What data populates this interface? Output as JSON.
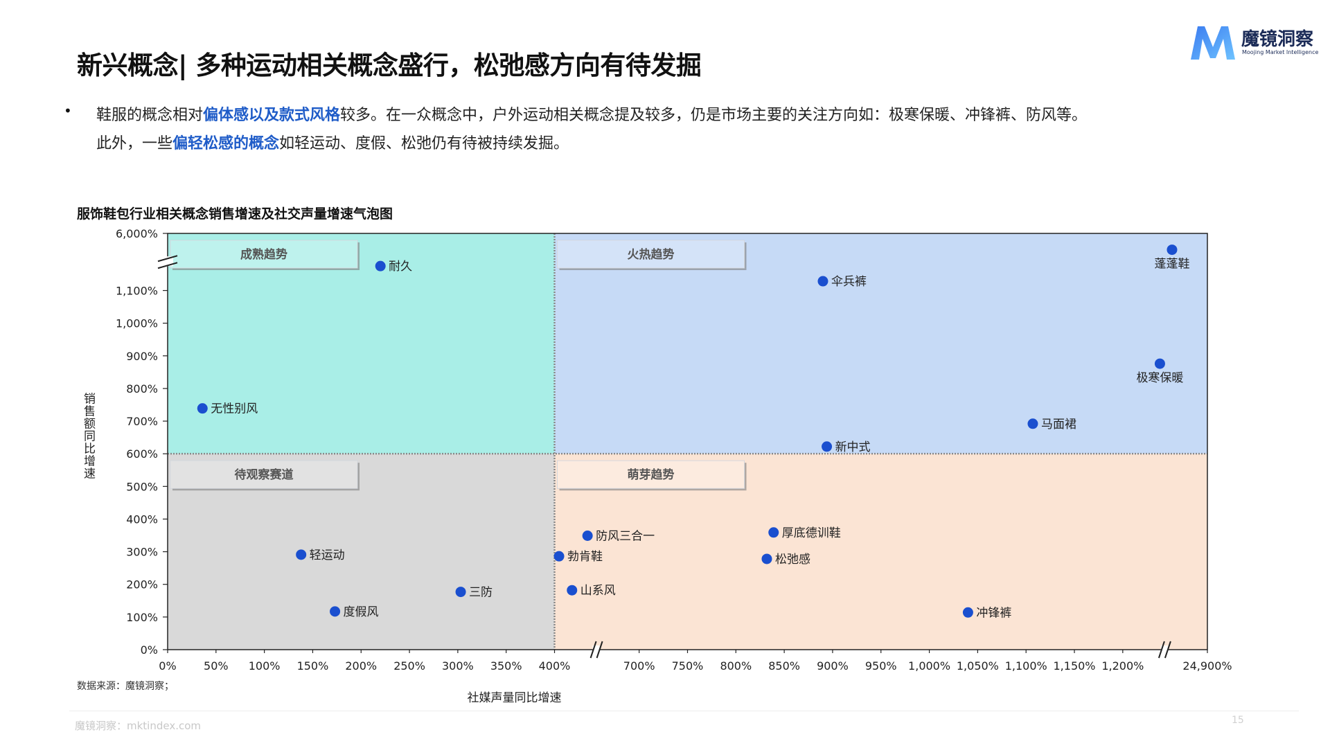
{
  "header": {
    "title": "新兴概念| 多种运动相关概念盛行，松弛感方向有待发掘",
    "logo_name": "魔镜洞察",
    "logo_tagline": "Moojing Market Intelligence"
  },
  "bullet": {
    "lines": [
      [
        {
          "text": "鞋服的概念相对",
          "emphasis": false
        },
        {
          "text": "偏体感以及款式风格",
          "emphasis": true
        },
        {
          "text": "较多。在一众概念中，户外运动相关概念提及较多，仍是市场主要的关注方向如：极寒保暖、冲锋裤、防风等。",
          "emphasis": false
        }
      ],
      [
        {
          "text": "此外，一些",
          "emphasis": false
        },
        {
          "text": "偏轻松感的概念",
          "emphasis": true
        },
        {
          "text": "如轻运动、度假、松弛仍有待被持续发掘。",
          "emphasis": false
        }
      ]
    ]
  },
  "chart_data": {
    "type": "scatter",
    "title": "服饰鞋包行业相关概念销售增速及社交声量增速气泡图",
    "x_label": "社媒声量同比增速",
    "y_label": "销售额同比增速",
    "color": "#1a4fcf",
    "labels": [
      "耐久",
      "蓬蓬鞋",
      "伞兵裤",
      "极寒保暖",
      "马面裙",
      "新中式",
      "无性别风",
      "防风三合一",
      "勃肯鞋",
      "山系风",
      "厚底德训鞋",
      "松弛感",
      "冲锋裤",
      "轻运动",
      "三防",
      "度假风"
    ],
    "x": [
      220,
      15000,
      890,
      11600,
      1107,
      894,
      36,
      517,
      416,
      462,
      839,
      832,
      1040,
      138,
      303,
      173
    ],
    "values": [
      3200,
      4600,
      1900,
      876,
      692,
      622,
      739,
      349,
      286,
      182,
      359,
      278,
      114,
      291,
      177,
      117
    ],
    "xlim": [
      0,
      24900
    ],
    "ylim": [
      0,
      6000
    ],
    "xticks": [
      {
        "value": 0,
        "label": "0%"
      },
      {
        "value": 50,
        "label": "50%"
      },
      {
        "value": 100,
        "label": "100%"
      },
      {
        "value": 150,
        "label": "150%"
      },
      {
        "value": 200,
        "label": "200%"
      },
      {
        "value": 250,
        "label": "250%"
      },
      {
        "value": 300,
        "label": "300%"
      },
      {
        "value": 350,
        "label": "350%"
      },
      {
        "value": 400,
        "label": "400%"
      },
      {
        "value": 700,
        "label": "700%"
      },
      {
        "value": 750,
        "label": "750%"
      },
      {
        "value": 800,
        "label": "800%"
      },
      {
        "value": 850,
        "label": "850%"
      },
      {
        "value": 900,
        "label": "900%"
      },
      {
        "value": 950,
        "label": "950%"
      },
      {
        "value": 1000,
        "label": "1,000%"
      },
      {
        "value": 1050,
        "label": "1,050%"
      },
      {
        "value": 1100,
        "label": "1,100%"
      },
      {
        "value": 1150,
        "label": "1,150%"
      },
      {
        "value": 1200,
        "label": "1,200%"
      },
      {
        "value": 24900,
        "label": "24,900%"
      }
    ],
    "yticks": [
      {
        "value": 0,
        "label": "0%"
      },
      {
        "value": 100,
        "label": "100%"
      },
      {
        "value": 200,
        "label": "200%"
      },
      {
        "value": 300,
        "label": "300%"
      },
      {
        "value": 400,
        "label": "400%"
      },
      {
        "value": 500,
        "label": "500%"
      },
      {
        "value": 600,
        "label": "600%"
      },
      {
        "value": 700,
        "label": "700%"
      },
      {
        "value": 800,
        "label": "800%"
      },
      {
        "value": 900,
        "label": "900%"
      },
      {
        "value": 1000,
        "label": "1,000%"
      },
      {
        "value": 1100,
        "label": "1,100%"
      },
      {
        "value": 6000,
        "label": "6,000%"
      }
    ],
    "quadrant_split": {
      "x": 400,
      "y": 600
    },
    "quadrants": [
      {
        "label": "成熟趋势",
        "color": "#a9eee7"
      },
      {
        "label": "火热趋势",
        "color": "#c6daf6"
      },
      {
        "label": "待观察赛道",
        "color": "#d9d9d9"
      },
      {
        "label": "萌芽趋势",
        "color": "#fbe4d4"
      }
    ]
  },
  "source": "数据来源：魔镜洞察；",
  "footer": "魔镜洞察：mktindex.com",
  "page_number": 15
}
